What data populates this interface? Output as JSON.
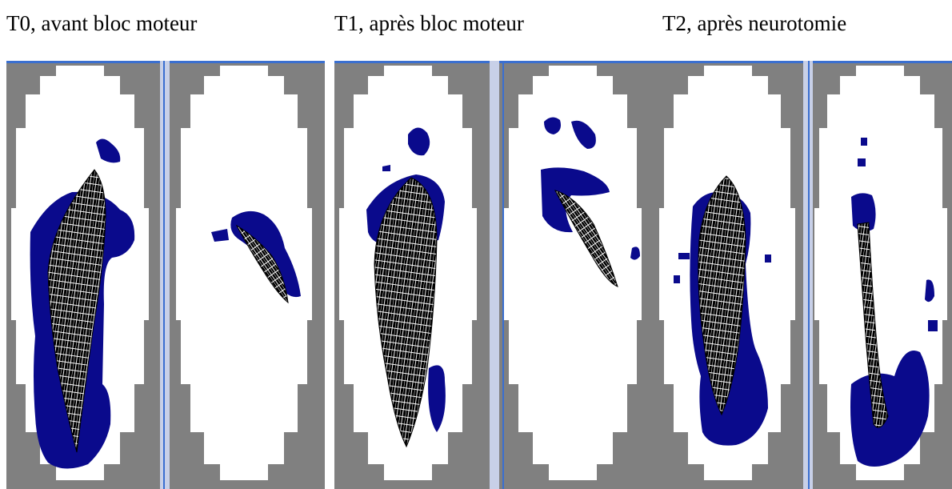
{
  "captions": {
    "t0": "T0, avant bloc moteur",
    "t1": "T1, après bloc moteur",
    "t2": "T2, après neurotomie"
  },
  "colors": {
    "background": "#ffffff",
    "mask_gray": "#808080",
    "ellipse_white": "#ffffff",
    "activation_blue": "#0a0a8c",
    "fiber_dark": "#000000",
    "fiber_light": "#ffffff",
    "frame_blue": "#3a6fd0"
  },
  "panels": [
    {
      "group": "T0",
      "view": "A"
    },
    {
      "group": "T0",
      "view": "B"
    },
    {
      "group": "T1",
      "view": "A"
    },
    {
      "group": "T1",
      "view": "B"
    },
    {
      "group": "T2",
      "view": "A"
    },
    {
      "group": "T2",
      "view": "B"
    }
  ]
}
